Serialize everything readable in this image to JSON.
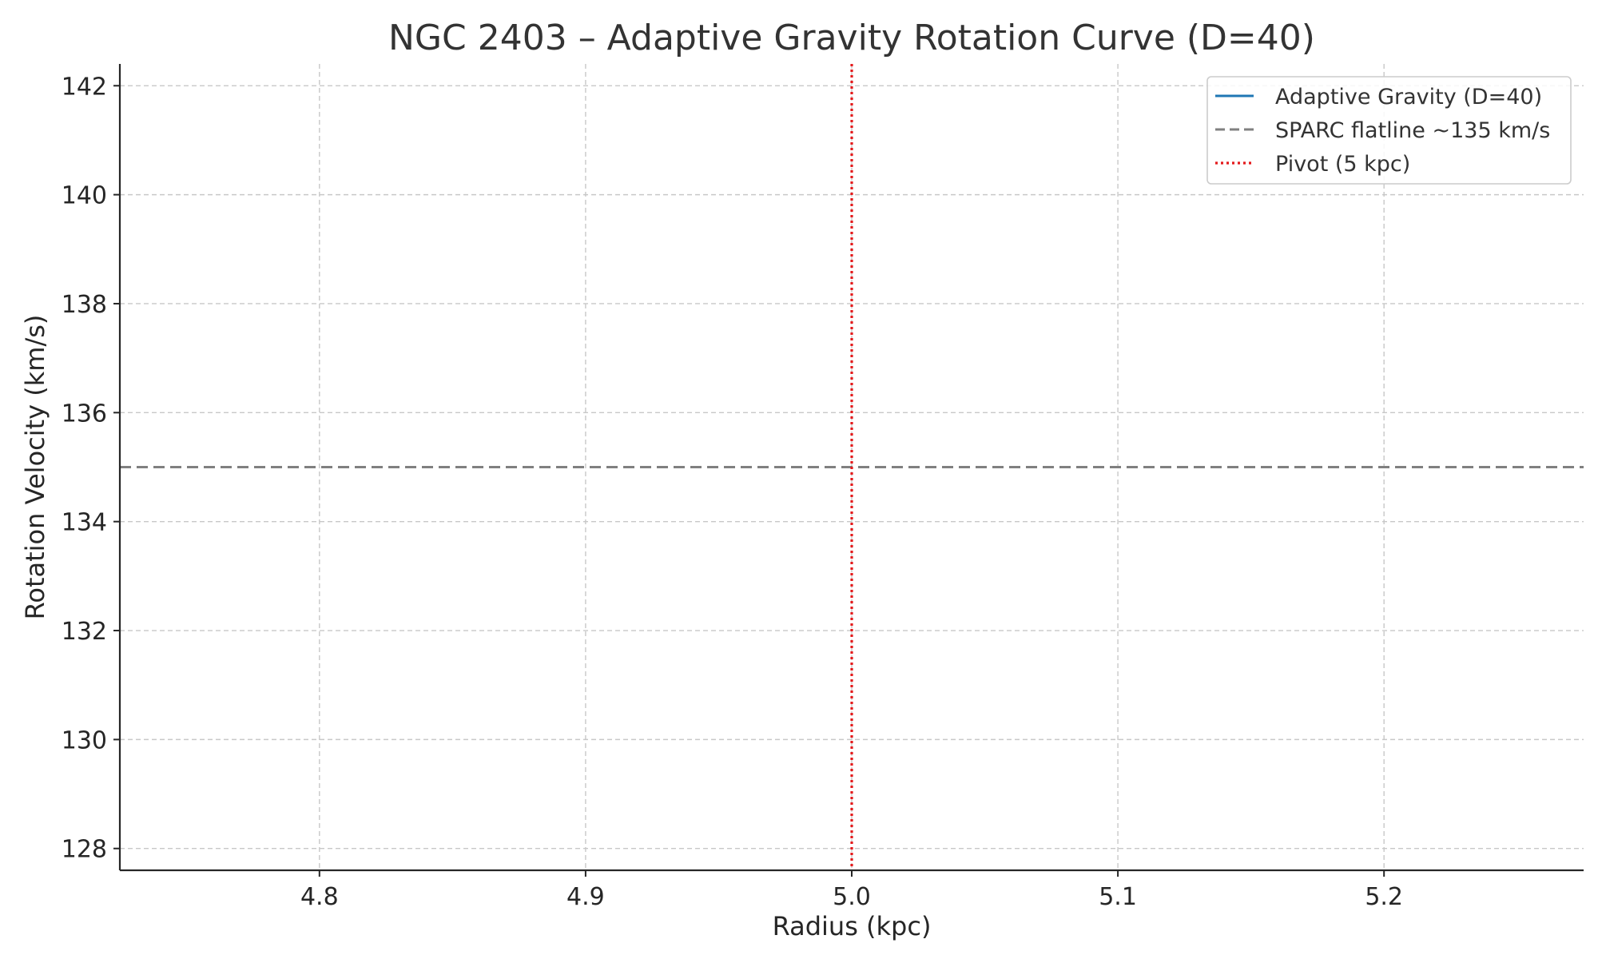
{
  "chart_data": {
    "type": "line",
    "title": "NGC 2403 – Adaptive Gravity Rotation Curve (D=40)",
    "xlabel": "Radius (kpc)",
    "ylabel": "Rotation Velocity (km/s)",
    "xlim": [
      4.725,
      5.275
    ],
    "ylim": [
      127.6,
      142.4
    ],
    "x_ticks": [
      4.8,
      4.9,
      5.0,
      5.1,
      5.2
    ],
    "x_tick_labels": [
      "4.8",
      "4.9",
      "5.0",
      "5.1",
      "5.2"
    ],
    "y_ticks": [
      128,
      130,
      132,
      134,
      136,
      138,
      140,
      142
    ],
    "y_tick_labels": [
      "128",
      "130",
      "132",
      "134",
      "136",
      "138",
      "140",
      "142"
    ],
    "grid": true,
    "legend_position": "top-right",
    "series": [
      {
        "name": "Adaptive Gravity (D=40)",
        "kind": "line",
        "x": [],
        "y": [],
        "color": "#1f77b4",
        "style": "solid"
      },
      {
        "name": "SPARC flatline ~135 km/s",
        "kind": "hline",
        "y": 135,
        "color": "#808080",
        "style": "dashed"
      },
      {
        "name": "Pivot (5 kpc)",
        "kind": "vline",
        "x": 5.0,
        "color": "#e41a1c",
        "style": "dotted"
      }
    ]
  }
}
